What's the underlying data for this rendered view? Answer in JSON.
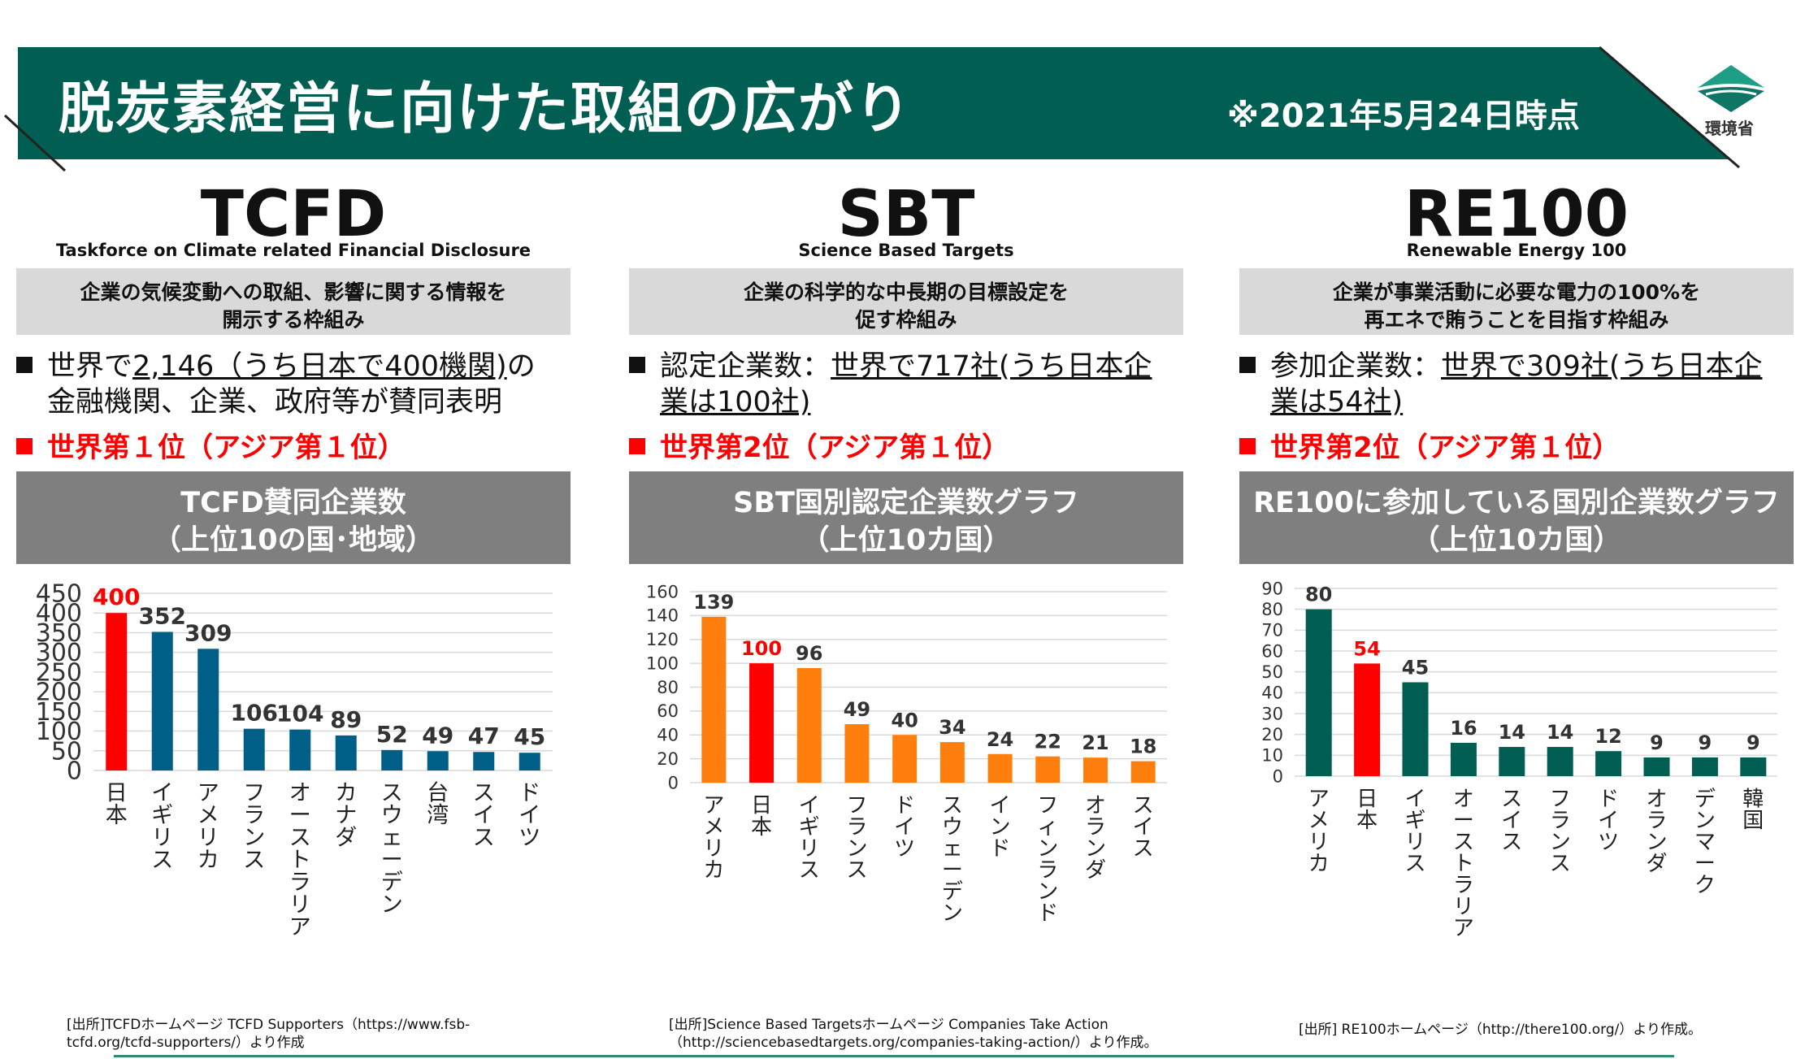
{
  "header": {
    "title": "脱炭素経営に向けた取組の広がり",
    "date": "※2021年5月24日時点",
    "logo_text": "環境省",
    "color": "#005f52"
  },
  "columns": [
    {
      "name": "TCFD",
      "full_name": "Taskforce on Climate related Financial Disclosure",
      "desc": [
        "企業の気候変動への取組、影響に関する情報を",
        "開示する枠組み"
      ],
      "bullet_prefix": "世界で",
      "bullet_underline": "2,146（うち日本で400機関)",
      "bullet_suffix": "の",
      "bullet_line2": "金融機関、企業、政府等が賛同表明",
      "bullet_line2_underline": "",
      "rank": "世界第１位（アジア第１位）",
      "graph_title": [
        "TCFD賛同企業数",
        "（上位10の国･地域）"
      ],
      "source": [
        "[出所]TCFDホームページ  TCFD Supporters（https://www.fsb-",
        "tcfd.org/tcfd-supporters/）より作成"
      ]
    },
    {
      "name": "SBT",
      "full_name": "Science Based Targets",
      "desc": [
        "企業の科学的な中長期の目標設定を",
        "促す枠組み"
      ],
      "bullet_prefix": "認定企業数：",
      "bullet_underline": "世界で717社(うち日本企",
      "bullet_suffix": "",
      "bullet_line2": "",
      "bullet_line2_underline": "業は100社)",
      "rank": "世界第2位（アジア第１位）",
      "graph_title": [
        "SBT国別認定企業数グラフ",
        "（上位10カ国）"
      ],
      "source": [
        "[出所]Science Based Targetsホームページ  Companies Take Action",
        "（http://sciencebasedtargets.org/companies-taking-action/）より作成。"
      ]
    },
    {
      "name": "RE100",
      "full_name": "Renewable Energy 100",
      "desc": [
        "企業が事業活動に必要な電力の100%を",
        "再エネで賄うことを目指す枠組み"
      ],
      "bullet_prefix": "参加企業数：",
      "bullet_underline": "世界で309社(うち日本企",
      "bullet_suffix": "",
      "bullet_line2": "",
      "bullet_line2_underline": "業は54社)",
      "rank": "世界第2位（アジア第１位）",
      "graph_title": [
        "RE100に参加している国別企業数グラフ",
        "（上位10カ国）"
      ],
      "source": [
        "[出所] RE100ホームページ（http://there100.org/）より作成。"
      ]
    }
  ],
  "chart_data": [
    {
      "type": "bar",
      "title": "TCFD賛同企業数（上位10の国･地域）",
      "categories": [
        "日本",
        "イギリス",
        "アメリカ",
        "フランス",
        "オーストラリア",
        "カナダ",
        "スウェーデン",
        "台湾",
        "スイス",
        "ドイツ"
      ],
      "values": [
        400,
        352,
        309,
        106,
        104,
        89,
        52,
        49,
        47,
        45
      ],
      "ylim": [
        0,
        450
      ],
      "yticks": [
        0,
        50,
        100,
        150,
        200,
        250,
        300,
        350,
        400,
        450
      ],
      "bar_color": "#005f86",
      "highlight_color": "#ff0000",
      "highlight_index": 0,
      "grid": true
    },
    {
      "type": "bar",
      "title": "SBT国別認定企業数グラフ（上位10カ国）",
      "categories": [
        "アメリカ",
        "日本",
        "イギリス",
        "フランス",
        "ドイツ",
        "スウェーデン",
        "インド",
        "フィンランド",
        "オランダ",
        "スイス"
      ],
      "values": [
        139,
        100,
        96,
        49,
        40,
        34,
        24,
        22,
        21,
        18
      ],
      "ylim": [
        0,
        160
      ],
      "yticks": [
        0,
        20,
        40,
        60,
        80,
        100,
        120,
        140,
        160
      ],
      "bar_color": "#ff7f0e",
      "highlight_color": "#ff0000",
      "highlight_index": 1,
      "grid": true
    },
    {
      "type": "bar",
      "title": "RE100に参加している国別企業数グラフ（上位10カ国）",
      "categories": [
        "アメリカ",
        "日本",
        "イギリス",
        "オーストラリア",
        "スイス",
        "フランス",
        "ドイツ",
        "オランダ",
        "デンマーク",
        "韓国"
      ],
      "values": [
        80,
        54,
        45,
        16,
        14,
        14,
        12,
        9,
        9,
        9
      ],
      "ylim": [
        0,
        90
      ],
      "yticks": [
        0,
        10,
        20,
        30,
        40,
        50,
        60,
        70,
        80,
        90
      ],
      "bar_color": "#005f52",
      "highlight_color": "#ff0000",
      "highlight_index": 1,
      "grid": true
    }
  ]
}
